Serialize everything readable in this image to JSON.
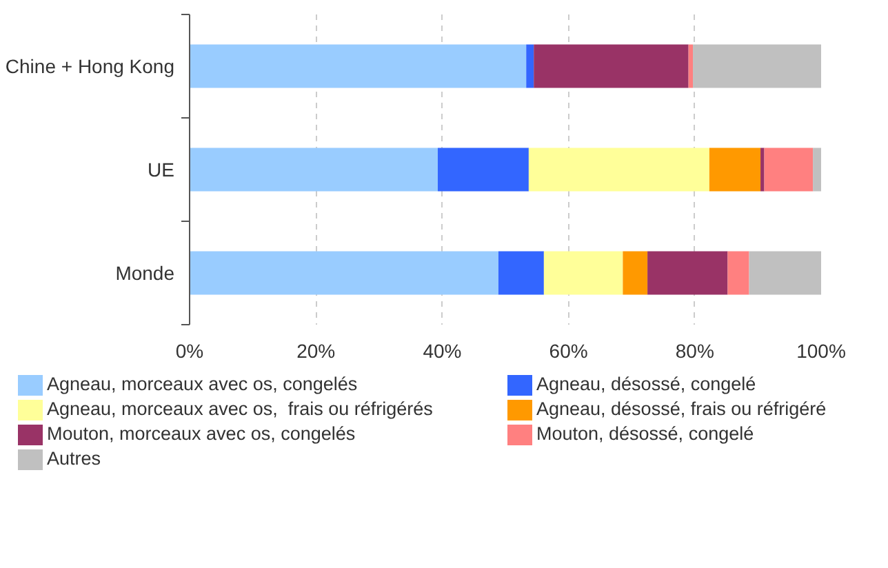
{
  "chart_data": {
    "type": "bar",
    "orientation": "horizontal",
    "stacked": true,
    "categories": [
      "Chine + Hong Kong",
      "UE",
      "Monde"
    ],
    "series": [
      {
        "name": "Agneau, morceaux avec os, congelés",
        "color": "#99ccff",
        "values": [
          53.3,
          39.3,
          48.9
        ]
      },
      {
        "name": "Agneau, désossé, congelé",
        "color": "#3366ff",
        "values": [
          1.2,
          14.4,
          7.2
        ]
      },
      {
        "name": "Agneau, morceaux avec os,  frais ou réfrigérés",
        "color": "#ffff99",
        "values": [
          0,
          28.6,
          12.5
        ]
      },
      {
        "name": "Agneau, désossé, frais ou réfrigéré",
        "color": "#ff9900",
        "values": [
          0,
          8.1,
          3.9
        ]
      },
      {
        "name": "Mouton, morceaux avec os, congelés",
        "color": "#993366",
        "values": [
          24.5,
          0.6,
          12.7
        ]
      },
      {
        "name": "Mouton, désossé, congelé",
        "color": "#ff8080",
        "values": [
          0.7,
          7.7,
          3.4
        ]
      },
      {
        "name": "Autres",
        "color": "#c0c0c0",
        "values": [
          20.3,
          1.3,
          11.4
        ]
      }
    ],
    "xlim": [
      0,
      100
    ],
    "xticks": [
      {
        "value": 0,
        "label": "0%"
      },
      {
        "value": 20,
        "label": "20%"
      },
      {
        "value": 40,
        "label": "40%"
      },
      {
        "value": 60,
        "label": "60%"
      },
      {
        "value": 80,
        "label": "80%"
      },
      {
        "value": 100,
        "label": "100%"
      }
    ],
    "grid": "x",
    "legend": "bottom"
  }
}
